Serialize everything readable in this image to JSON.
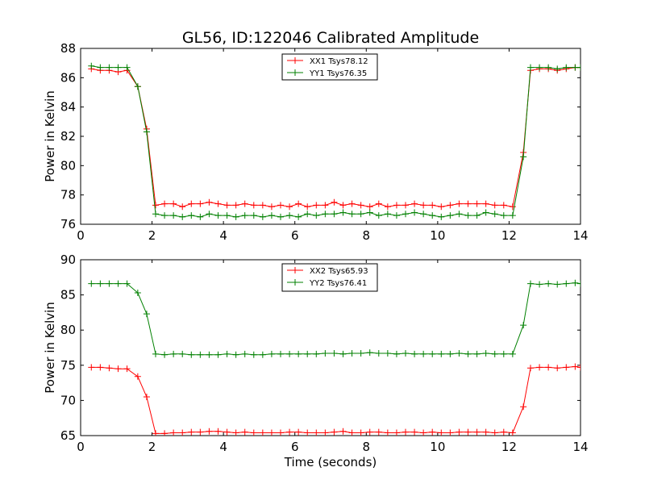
{
  "chart_data": [
    {
      "type": "line",
      "title": "GL56, ID:122046 Calibrated Amplitude",
      "xlabel": "",
      "ylabel": "Power in Kelvin",
      "xlim": [
        0,
        14
      ],
      "ylim": [
        76,
        88
      ],
      "xticks": [
        "0",
        "2",
        "4",
        "6",
        "8",
        "10",
        "12",
        "14"
      ],
      "yticks": [
        "76",
        "78",
        "80",
        "82",
        "84",
        "86",
        "88"
      ],
      "grid": false,
      "legend_position": "top-center",
      "x": [
        0.3,
        0.55,
        0.8,
        1.05,
        1.3,
        1.6,
        1.85,
        2.1,
        2.35,
        2.6,
        2.85,
        3.1,
        3.35,
        3.6,
        3.85,
        4.1,
        4.35,
        4.6,
        4.85,
        5.1,
        5.35,
        5.6,
        5.85,
        6.1,
        6.35,
        6.6,
        6.85,
        7.1,
        7.35,
        7.6,
        7.85,
        8.1,
        8.35,
        8.6,
        8.85,
        9.1,
        9.35,
        9.6,
        9.85,
        10.1,
        10.35,
        10.6,
        10.85,
        11.1,
        11.35,
        11.6,
        11.85,
        12.1,
        12.4,
        12.6,
        12.85,
        13.1,
        13.35,
        13.6,
        13.85,
        14.0
      ],
      "series": [
        {
          "name": "XX1 Tsys78.12",
          "color": "#ff0000",
          "values": [
            86.6,
            86.5,
            86.5,
            86.4,
            86.5,
            85.4,
            82.5,
            77.3,
            77.4,
            77.4,
            77.2,
            77.4,
            77.4,
            77.5,
            77.4,
            77.3,
            77.3,
            77.4,
            77.3,
            77.3,
            77.2,
            77.3,
            77.2,
            77.4,
            77.2,
            77.3,
            77.3,
            77.5,
            77.3,
            77.4,
            77.3,
            77.2,
            77.4,
            77.2,
            77.3,
            77.3,
            77.4,
            77.3,
            77.3,
            77.2,
            77.3,
            77.4,
            77.4,
            77.4,
            77.4,
            77.3,
            77.3,
            77.2,
            80.9,
            86.5,
            86.6,
            86.6,
            86.5,
            86.6,
            86.7,
            86.7
          ]
        },
        {
          "name": "YY1 Tsys76.35",
          "color": "#008000",
          "values": [
            86.8,
            86.7,
            86.7,
            86.7,
            86.7,
            85.4,
            82.3,
            76.7,
            76.6,
            76.6,
            76.5,
            76.6,
            76.5,
            76.7,
            76.6,
            76.6,
            76.5,
            76.6,
            76.6,
            76.5,
            76.6,
            76.5,
            76.6,
            76.5,
            76.7,
            76.6,
            76.7,
            76.7,
            76.8,
            76.7,
            76.7,
            76.8,
            76.6,
            76.7,
            76.6,
            76.7,
            76.8,
            76.7,
            76.6,
            76.5,
            76.6,
            76.7,
            76.6,
            76.6,
            76.8,
            76.7,
            76.6,
            76.6,
            80.6,
            86.7,
            86.7,
            86.7,
            86.6,
            86.7,
            86.7,
            86.7
          ]
        }
      ]
    },
    {
      "type": "line",
      "title": "",
      "xlabel": "Time (seconds)",
      "ylabel": "Power in Kelvin",
      "xlim": [
        0,
        14
      ],
      "ylim": [
        65,
        90
      ],
      "xticks": [
        "0",
        "2",
        "4",
        "6",
        "8",
        "10",
        "12",
        "14"
      ],
      "yticks": [
        "65",
        "70",
        "75",
        "80",
        "85",
        "90"
      ],
      "grid": false,
      "legend_position": "top-center",
      "x": [
        0.3,
        0.55,
        0.8,
        1.05,
        1.3,
        1.6,
        1.85,
        2.1,
        2.35,
        2.6,
        2.85,
        3.1,
        3.35,
        3.6,
        3.85,
        4.1,
        4.35,
        4.6,
        4.85,
        5.1,
        5.35,
        5.6,
        5.85,
        6.1,
        6.35,
        6.6,
        6.85,
        7.1,
        7.35,
        7.6,
        7.85,
        8.1,
        8.35,
        8.6,
        8.85,
        9.1,
        9.35,
        9.6,
        9.85,
        10.1,
        10.35,
        10.6,
        10.85,
        11.1,
        11.35,
        11.6,
        11.85,
        12.1,
        12.4,
        12.6,
        12.85,
        13.1,
        13.35,
        13.6,
        13.85,
        14.0
      ],
      "series": [
        {
          "name": "XX2 Tsys65.93",
          "color": "#ff0000",
          "values": [
            74.7,
            74.7,
            74.6,
            74.5,
            74.5,
            73.4,
            70.5,
            65.3,
            65.3,
            65.4,
            65.4,
            65.5,
            65.5,
            65.6,
            65.6,
            65.5,
            65.4,
            65.5,
            65.4,
            65.4,
            65.4,
            65.4,
            65.5,
            65.5,
            65.4,
            65.4,
            65.4,
            65.5,
            65.6,
            65.4,
            65.4,
            65.5,
            65.5,
            65.4,
            65.4,
            65.5,
            65.5,
            65.4,
            65.5,
            65.4,
            65.4,
            65.5,
            65.5,
            65.5,
            65.5,
            65.4,
            65.5,
            65.4,
            69.1,
            74.6,
            74.7,
            74.7,
            74.6,
            74.7,
            74.8,
            74.7
          ]
        },
        {
          "name": "YY2 Tsys76.41",
          "color": "#008000",
          "values": [
            86.6,
            86.6,
            86.6,
            86.6,
            86.6,
            85.3,
            82.3,
            76.6,
            76.5,
            76.6,
            76.6,
            76.5,
            76.5,
            76.5,
            76.5,
            76.6,
            76.5,
            76.6,
            76.5,
            76.5,
            76.6,
            76.6,
            76.6,
            76.6,
            76.6,
            76.6,
            76.7,
            76.7,
            76.6,
            76.7,
            76.7,
            76.8,
            76.7,
            76.7,
            76.6,
            76.7,
            76.6,
            76.6,
            76.6,
            76.6,
            76.6,
            76.7,
            76.6,
            76.6,
            76.7,
            76.6,
            76.6,
            76.6,
            80.7,
            86.6,
            86.5,
            86.6,
            86.5,
            86.6,
            86.7,
            86.6
          ]
        }
      ]
    }
  ]
}
